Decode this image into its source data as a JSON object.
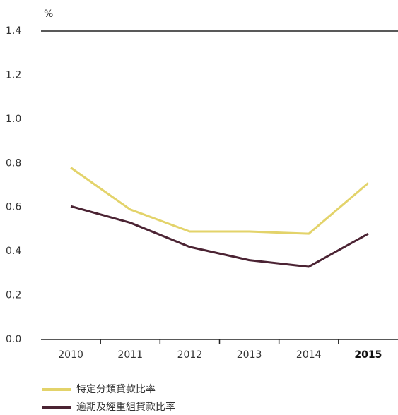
{
  "chart_data": {
    "type": "line",
    "y_label": "%",
    "categories": [
      "2010",
      "2011",
      "2012",
      "2013",
      "2014",
      "2015"
    ],
    "highlight": "2015",
    "series": [
      {
        "name": "特定分類貸款比率",
        "color": "#e3d36a",
        "values": [
          0.78,
          0.59,
          0.49,
          0.49,
          0.48,
          0.71
        ]
      },
      {
        "name": "逾期及經重組貸款比率",
        "color": "#4b2333",
        "values": [
          0.605,
          0.53,
          0.42,
          0.36,
          0.33,
          0.48
        ]
      }
    ],
    "ylim": [
      0,
      1.4
    ],
    "yticks": [
      {
        "value": 0,
        "label": "0.0"
      },
      0.2,
      0.4,
      0.6,
      0.8,
      {
        "value": 1,
        "label": "1.0"
      },
      1.2,
      1.4
    ],
    "grid": false
  }
}
